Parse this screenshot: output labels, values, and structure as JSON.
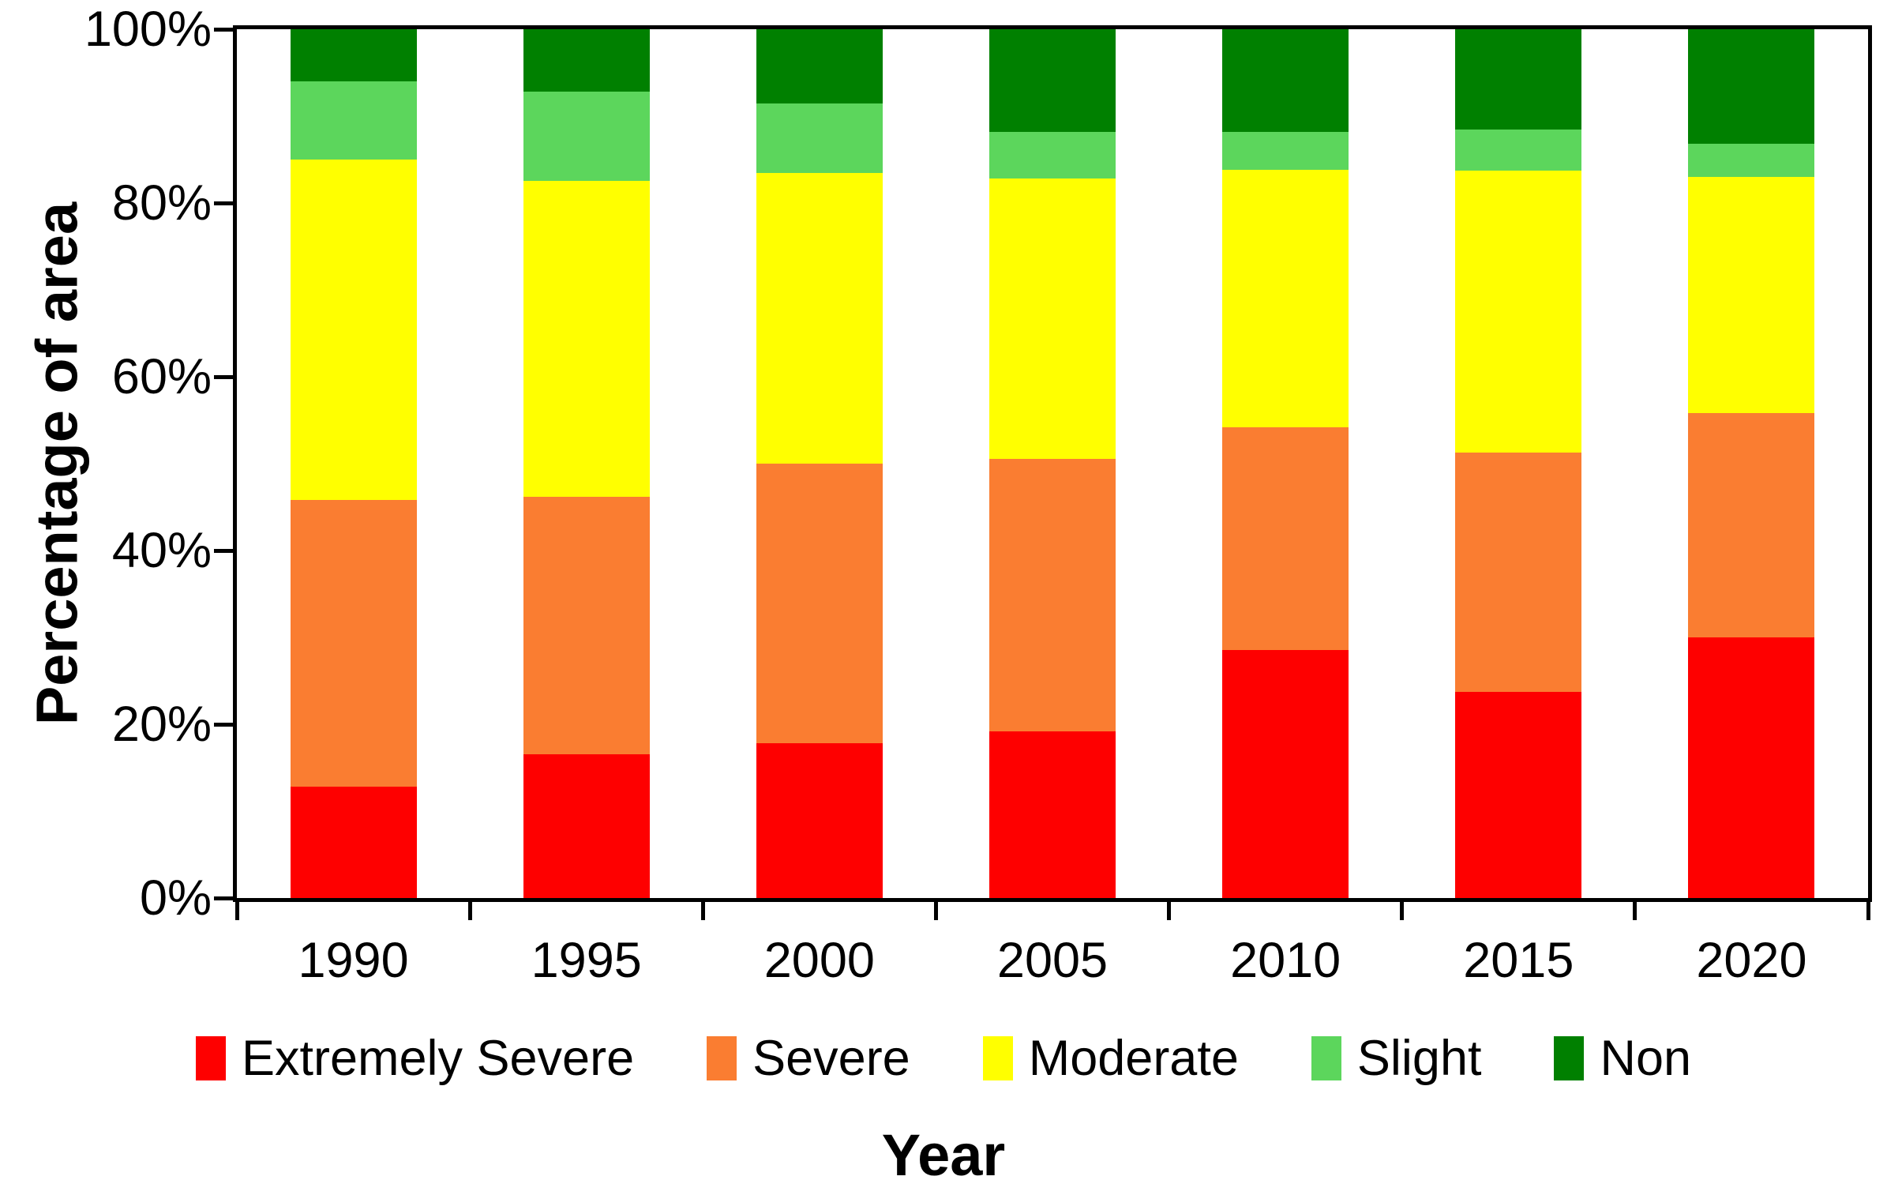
{
  "figure": {
    "y_axis_title": "Percentage of area",
    "x_axis_title": "Year"
  },
  "chart_data": {
    "type": "bar",
    "stacked": true,
    "normalized_to_100_percent": true,
    "title": "",
    "xlabel": "Year",
    "ylabel": "Percentage of area",
    "categories": [
      "1990",
      "1995",
      "2000",
      "2005",
      "2010",
      "2015",
      "2020"
    ],
    "series": [
      {
        "name": "Extremely Severe",
        "color": "#FE0000",
        "values": [
          12.8,
          16.5,
          17.8,
          19.2,
          28.5,
          23.7,
          30.0
        ]
      },
      {
        "name": "Severe",
        "color": "#FA7D31",
        "values": [
          33.0,
          29.7,
          32.2,
          31.3,
          25.7,
          27.6,
          25.8
        ]
      },
      {
        "name": "Moderate",
        "color": "#FFFF00",
        "values": [
          39.2,
          36.3,
          33.5,
          32.3,
          29.6,
          32.4,
          27.2
        ]
      },
      {
        "name": "Slight",
        "color": "#5CD65C",
        "values": [
          9.0,
          10.3,
          8.0,
          5.4,
          4.4,
          4.8,
          3.8
        ]
      },
      {
        "name": "Non",
        "color": "#008000",
        "values": [
          6.0,
          7.2,
          8.5,
          11.8,
          11.8,
          11.5,
          13.2
        ]
      }
    ],
    "ylim": [
      0,
      100
    ],
    "y_ticks": [
      0,
      20,
      40,
      60,
      80,
      100
    ],
    "y_tick_suffix": "%",
    "legend_position": "bottom",
    "legend_labels": [
      "Extremely Severe",
      "Severe",
      "Moderate",
      "Slight",
      "Non"
    ],
    "grid": false,
    "axis_color": "#000000",
    "background_color": "#FFFFFF"
  }
}
